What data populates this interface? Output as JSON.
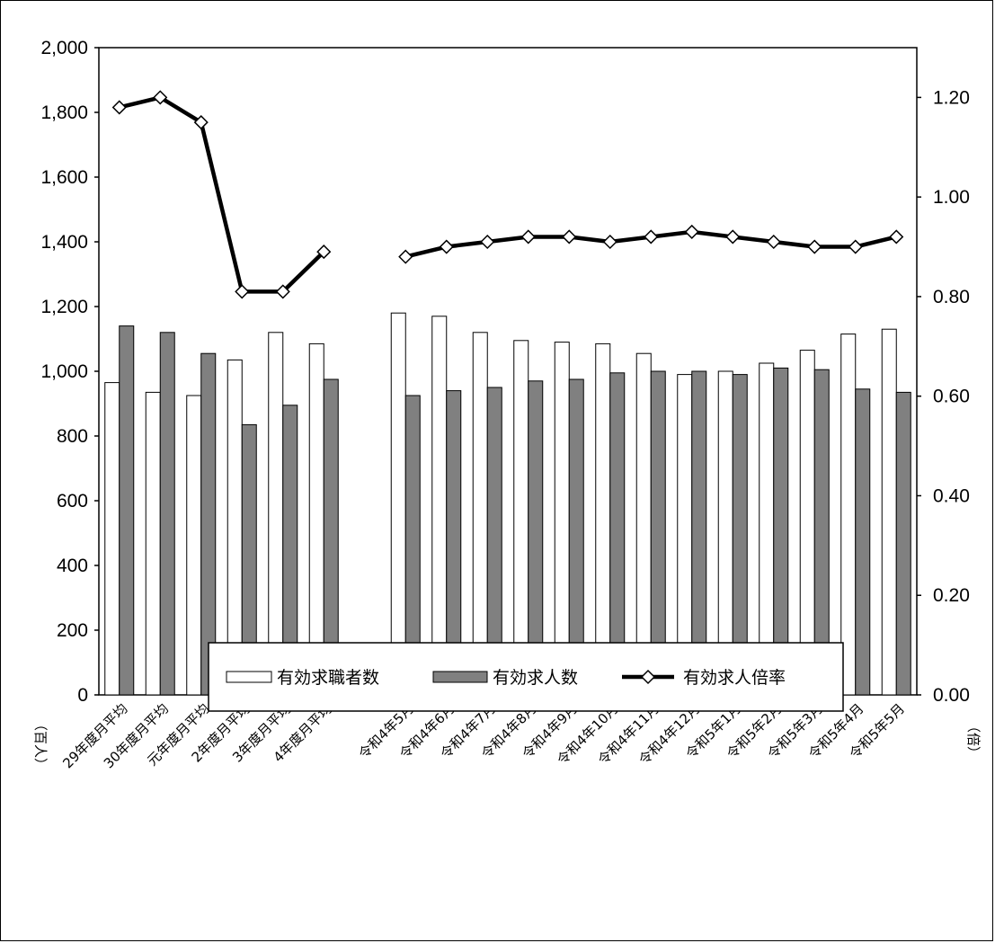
{
  "chart_data": {
    "type": "bar",
    "categories": [
      "29年度月平均",
      "30年度月平均",
      "元年度月平均",
      "2年度月平均",
      "3年度月平均",
      "4年度月平均",
      "",
      "令和4年5月",
      "令和4年6月",
      "令和4年7月",
      "令和4年8月",
      "令和4年9月",
      "令和4年10月",
      "令和4年11月",
      "令和4年12月",
      "令和5年1月",
      "令和5年2月",
      "令和5年3月",
      "令和5年4月",
      "令和5年5月"
    ],
    "series": [
      {
        "name": "有効求職者数",
        "type": "bar",
        "axis": "left",
        "color": "#ffffff",
        "values": [
          965,
          935,
          925,
          1035,
          1120,
          1085,
          null,
          1180,
          1170,
          1120,
          1095,
          1090,
          1085,
          1055,
          990,
          1000,
          1025,
          1065,
          1115,
          1130
        ]
      },
      {
        "name": "有効求人数",
        "type": "bar",
        "axis": "left",
        "color": "#808080",
        "values": [
          1140,
          1120,
          1055,
          835,
          895,
          975,
          null,
          925,
          940,
          950,
          970,
          975,
          995,
          1000,
          1000,
          990,
          1010,
          1005,
          945,
          935
        ]
      },
      {
        "name": "有効求人倍率",
        "type": "line",
        "axis": "right",
        "color": "#000000",
        "marker": "diamond",
        "values": [
          1.18,
          1.2,
          1.15,
          0.81,
          0.81,
          0.89,
          null,
          0.88,
          0.9,
          0.91,
          0.92,
          0.92,
          0.91,
          0.92,
          0.93,
          0.92,
          0.91,
          0.9,
          0.9,
          0.92
        ]
      }
    ],
    "ylim": [
      0,
      2000
    ],
    "y_ticks": [
      "0",
      "200",
      "400",
      "600",
      "800",
      "1,000",
      "1,200",
      "1,400",
      "1,600",
      "1,800",
      "2,000"
    ],
    "y2lim": [
      0,
      1.3
    ],
    "y2_ticks": [
      "0.00",
      "0.20",
      "0.40",
      "0.60",
      "0.80",
      "1.00",
      "1.20"
    ],
    "ylabel": "（百人）",
    "y2label": "（倍）",
    "legend_position": "bottom",
    "grid": false
  }
}
